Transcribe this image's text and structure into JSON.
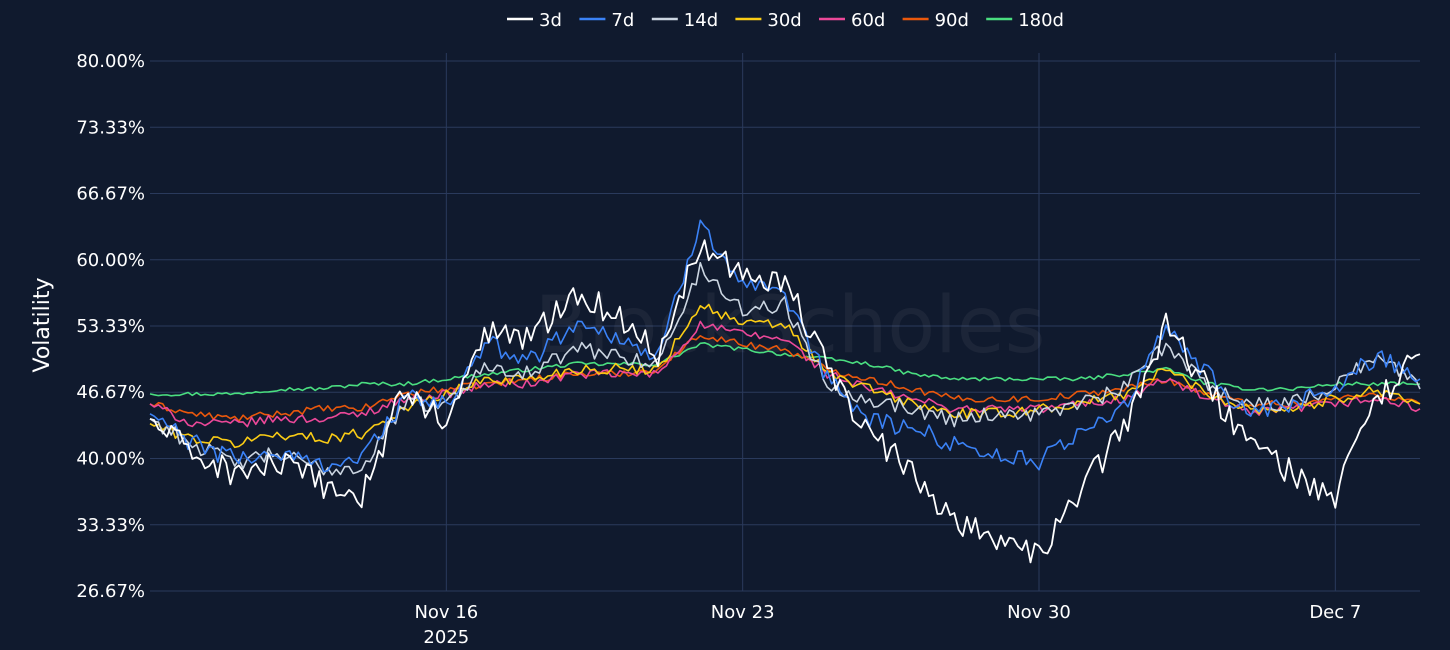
{
  "chart_data": {
    "type": "line",
    "ylabel": "Volatility",
    "y_tick_labels": [
      "80.00%",
      "73.33%",
      "66.67%",
      "60.00%",
      "53.33%",
      "46.67%",
      "40.00%",
      "33.33%",
      "26.67%"
    ],
    "y_ticks": [
      80.0,
      73.33,
      66.67,
      60.0,
      53.33,
      46.67,
      40.0,
      33.33,
      26.67
    ],
    "ylim": [
      26.67,
      80.0
    ],
    "xlim": [
      "2025-11-09",
      "2025-12-09"
    ],
    "x_ticks": [
      {
        "date": "2025-11-16",
        "label": "Nov 16",
        "sublabel": "2025"
      },
      {
        "date": "2025-11-23",
        "label": "Nov 23",
        "sublabel": ""
      },
      {
        "date": "2025-11-30",
        "label": "Nov 30",
        "sublabel": ""
      },
      {
        "date": "2025-12-07",
        "label": "Dec 7",
        "sublabel": ""
      }
    ],
    "grid": true,
    "legend_position": "top-center",
    "watermark": "BlockScholes",
    "x": [
      "2025-11-09",
      "2025-11-10",
      "2025-11-11",
      "2025-11-12",
      "2025-11-13",
      "2025-11-14",
      "2025-11-15",
      "2025-11-16",
      "2025-11-17",
      "2025-11-18",
      "2025-11-19",
      "2025-11-20",
      "2025-11-21",
      "2025-11-22",
      "2025-11-23",
      "2025-11-24",
      "2025-11-25",
      "2025-11-26",
      "2025-11-27",
      "2025-11-28",
      "2025-11-29",
      "2025-11-30",
      "2025-12-01",
      "2025-12-02",
      "2025-12-03",
      "2025-12-04",
      "2025-12-05",
      "2025-12-06",
      "2025-12-07",
      "2025-12-08",
      "2025-12-09"
    ],
    "series": [
      {
        "name": "3d",
        "color": "#ffffff",
        "values": [
          44.0,
          40.5,
          38.5,
          39.5,
          37.5,
          36.0,
          47.0,
          43.5,
          53.0,
          52.0,
          57.0,
          54.5,
          50.5,
          62.0,
          58.5,
          58.0,
          49.0,
          42.5,
          38.5,
          34.0,
          32.0,
          30.0,
          37.0,
          43.0,
          53.5,
          47.0,
          41.5,
          38.5,
          36.0,
          46.0,
          50.5
        ]
      },
      {
        "name": "7d",
        "color": "#3b82f6",
        "values": [
          44.5,
          41.5,
          40.0,
          40.5,
          39.5,
          40.0,
          46.0,
          45.5,
          51.5,
          50.0,
          53.5,
          52.5,
          50.0,
          64.0,
          57.5,
          56.0,
          48.0,
          44.0,
          43.0,
          41.5,
          40.5,
          39.5,
          43.0,
          45.0,
          53.0,
          48.5,
          44.0,
          45.5,
          47.0,
          50.5,
          48.0
        ]
      },
      {
        "name": "14d",
        "color": "#cbd5e1",
        "values": [
          44.0,
          41.5,
          39.5,
          40.5,
          39.0,
          39.0,
          45.5,
          45.5,
          49.5,
          48.5,
          51.0,
          50.5,
          49.5,
          59.0,
          55.0,
          55.5,
          47.5,
          46.0,
          45.0,
          44.0,
          44.5,
          44.5,
          45.5,
          47.0,
          51.5,
          47.5,
          45.5,
          45.5,
          47.5,
          50.5,
          47.0
        ]
      },
      {
        "name": "30d",
        "color": "#facc15",
        "values": [
          43.5,
          42.0,
          41.5,
          42.5,
          42.0,
          42.5,
          45.0,
          46.5,
          48.0,
          48.0,
          49.0,
          49.0,
          49.0,
          55.5,
          53.5,
          53.5,
          48.5,
          47.0,
          45.5,
          44.5,
          44.5,
          45.0,
          45.5,
          46.5,
          49.0,
          46.5,
          45.0,
          45.0,
          46.0,
          47.0,
          45.5
        ]
      },
      {
        "name": "60d",
        "color": "#ec4899",
        "values": [
          45.5,
          43.5,
          43.5,
          44.0,
          44.0,
          44.5,
          46.0,
          46.5,
          47.5,
          47.5,
          48.5,
          48.5,
          48.5,
          53.5,
          52.5,
          52.0,
          48.5,
          47.0,
          46.0,
          45.0,
          45.0,
          45.0,
          45.5,
          46.0,
          48.0,
          46.0,
          44.5,
          45.0,
          45.5,
          46.0,
          45.0
        ]
      },
      {
        "name": "90d",
        "color": "#ea580c",
        "values": [
          45.5,
          44.5,
          44.0,
          44.5,
          45.0,
          45.0,
          46.5,
          47.0,
          47.5,
          48.0,
          48.5,
          48.5,
          49.0,
          52.5,
          51.5,
          51.0,
          49.0,
          48.0,
          47.0,
          46.0,
          46.0,
          46.0,
          46.5,
          47.0,
          48.0,
          46.5,
          45.5,
          45.5,
          46.0,
          46.5,
          45.5
        ]
      },
      {
        "name": "180d",
        "color": "#4ade80",
        "values": [
          46.5,
          46.5,
          46.5,
          47.0,
          47.0,
          47.5,
          47.5,
          48.0,
          48.5,
          49.0,
          49.5,
          49.5,
          49.5,
          51.5,
          51.0,
          50.5,
          50.0,
          49.5,
          48.5,
          48.0,
          48.0,
          48.0,
          48.0,
          48.5,
          49.0,
          47.5,
          47.0,
          47.0,
          47.5,
          47.5,
          47.5
        ]
      }
    ]
  }
}
